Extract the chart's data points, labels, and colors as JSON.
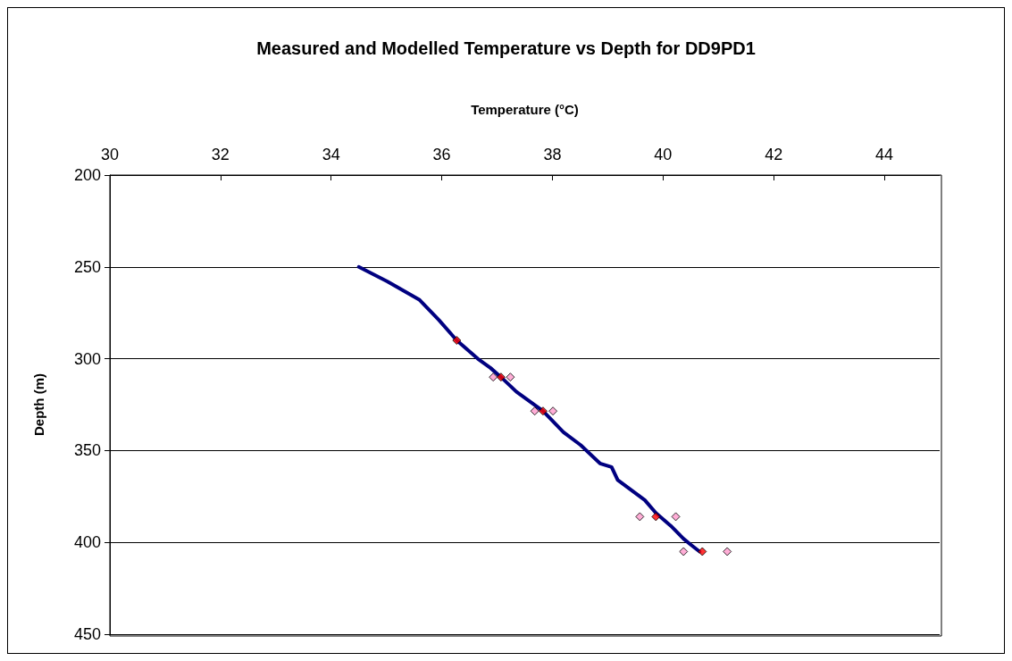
{
  "chart_data": {
    "type": "scatter",
    "title": "Measured and Modelled Temperature vs Depth for DD9PD1",
    "xlabel": "Temperature (°C)",
    "ylabel": "Depth (m)",
    "xlim": [
      30,
      45
    ],
    "xticks": [
      30,
      32,
      34,
      36,
      38,
      40,
      42,
      44
    ],
    "ylim": [
      450,
      200
    ],
    "yticks": [
      200,
      250,
      300,
      350,
      400,
      450
    ],
    "grid": "y",
    "series": [
      {
        "type": "line",
        "marker": "none",
        "color": "#000080",
        "x": [
          34.5,
          35.02,
          35.6,
          35.95,
          36.27,
          36.65,
          36.88,
          37.07,
          37.35,
          37.83,
          38.2,
          38.51,
          38.86,
          39.07,
          39.18,
          39.67,
          39.87,
          40.14,
          40.37,
          40.49,
          40.66
        ],
        "values": [
          250,
          258,
          268,
          279,
          290,
          300,
          305,
          310,
          318,
          328.5,
          340,
          347,
          357,
          359,
          366,
          377,
          384,
          391,
          398,
          401,
          405
        ]
      },
      {
        "marker": "diamond",
        "color": "#ff99cc",
        "x": [
          36.93,
          37.24,
          37.68,
          38.01,
          39.58,
          40.23,
          40.37,
          41.16
        ],
        "values": [
          310,
          310,
          328.5,
          328.5,
          386,
          386,
          405,
          405
        ]
      },
      {
        "marker": "diamond",
        "color": "#ff0000",
        "x": [
          36.27,
          37.07,
          37.83,
          39.87,
          40.71
        ],
        "values": [
          290,
          310,
          328.5,
          386,
          405
        ]
      }
    ]
  }
}
